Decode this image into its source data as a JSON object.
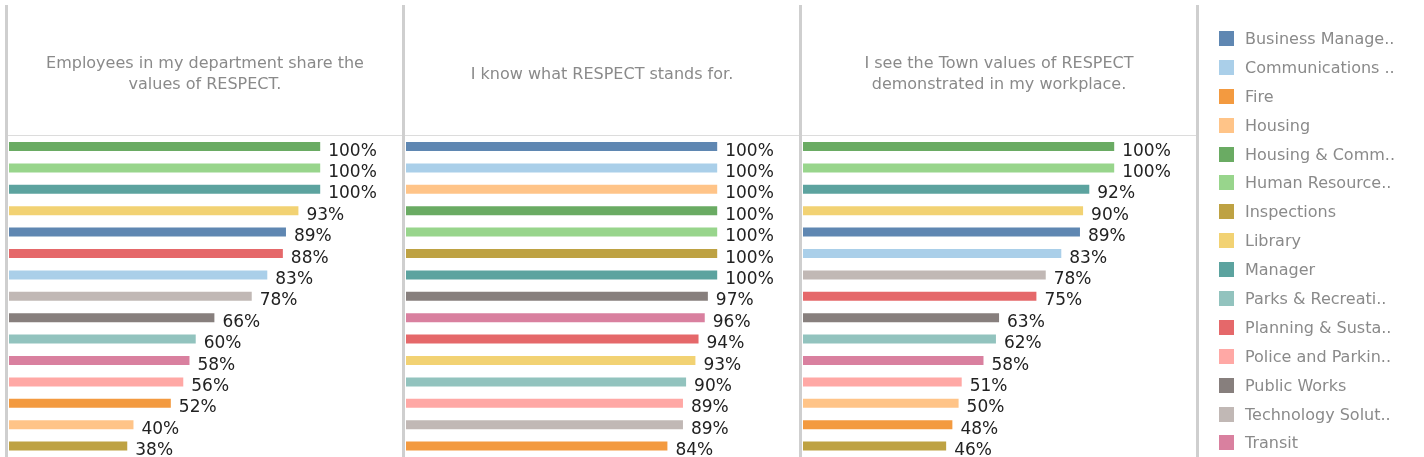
{
  "chart_data": [
    {
      "type": "bar",
      "orientation": "horizontal",
      "stacked": true,
      "legend": "right",
      "title": "Employees in my department share the values of RESPECT.",
      "categories": [
        null,
        null,
        null,
        null,
        null,
        null,
        null,
        null,
        null,
        null,
        null,
        null,
        null,
        null,
        null
      ],
      "series": [
        {
          "name": "Business Manage..",
          "color": "#5f87b2",
          "values": [
            null,
            null,
            null,
            null,
            89,
            null,
            null,
            null,
            null,
            null,
            null,
            null,
            null,
            null,
            null
          ],
          "value_labels": [
            null,
            null,
            null,
            null,
            "89%",
            null,
            null,
            null,
            null,
            null,
            null,
            null,
            null,
            null,
            null
          ]
        },
        {
          "name": "Communications ..",
          "color": "#aacfe9",
          "values": [
            null,
            null,
            null,
            null,
            null,
            null,
            83,
            null,
            null,
            null,
            null,
            null,
            null,
            null,
            null
          ],
          "value_labels": [
            null,
            null,
            null,
            null,
            null,
            null,
            "83%",
            null,
            null,
            null,
            null,
            null,
            null,
            null,
            null
          ]
        },
        {
          "name": "Fire",
          "color": "#f39a40",
          "values": [
            null,
            null,
            null,
            null,
            null,
            null,
            null,
            null,
            null,
            null,
            null,
            null,
            52,
            null,
            null
          ],
          "value_labels": [
            null,
            null,
            null,
            null,
            null,
            null,
            null,
            null,
            null,
            null,
            null,
            null,
            "52%",
            null,
            null
          ]
        },
        {
          "name": "Housing",
          "color": "#ffc488",
          "values": [
            null,
            null,
            null,
            null,
            null,
            null,
            null,
            null,
            null,
            null,
            null,
            null,
            null,
            40,
            null
          ],
          "value_labels": [
            null,
            null,
            null,
            null,
            null,
            null,
            null,
            null,
            null,
            null,
            null,
            null,
            null,
            "40%",
            null
          ]
        },
        {
          "name": "Housing & Comm..",
          "color": "#6aab63",
          "values": [
            100,
            null,
            null,
            null,
            null,
            null,
            null,
            null,
            null,
            null,
            null,
            null,
            null,
            null,
            null
          ],
          "value_labels": [
            "100%",
            null,
            null,
            null,
            null,
            null,
            null,
            null,
            null,
            null,
            null,
            null,
            null,
            null,
            null
          ]
        },
        {
          "name": "Human Resource..",
          "color": "#98d58c",
          "values": [
            null,
            100,
            null,
            null,
            null,
            null,
            null,
            null,
            null,
            null,
            null,
            null,
            null,
            null,
            null
          ],
          "value_labels": [
            null,
            "100%",
            null,
            null,
            null,
            null,
            null,
            null,
            null,
            null,
            null,
            null,
            null,
            null,
            null
          ]
        },
        {
          "name": "Inspections",
          "color": "#bea243",
          "values": [
            null,
            null,
            null,
            null,
            null,
            null,
            null,
            null,
            null,
            null,
            null,
            null,
            null,
            null,
            38
          ],
          "value_labels": [
            null,
            null,
            null,
            null,
            null,
            null,
            null,
            null,
            null,
            null,
            null,
            null,
            null,
            null,
            "38%"
          ]
        },
        {
          "name": "Library",
          "color": "#f2d273",
          "values": [
            null,
            null,
            null,
            93,
            null,
            null,
            null,
            null,
            null,
            null,
            null,
            null,
            null,
            null,
            null
          ],
          "value_labels": [
            null,
            null,
            null,
            "93%",
            null,
            null,
            null,
            null,
            null,
            null,
            null,
            null,
            null,
            null,
            null
          ]
        },
        {
          "name": "Manager",
          "color": "#5ca39f",
          "values": [
            null,
            null,
            100,
            null,
            null,
            null,
            null,
            null,
            null,
            null,
            null,
            null,
            null,
            null,
            null
          ],
          "value_labels": [
            null,
            null,
            "100%",
            null,
            null,
            null,
            null,
            null,
            null,
            null,
            null,
            null,
            null,
            null,
            null
          ]
        },
        {
          "name": "Parks & Recreati..",
          "color": "#92c3be",
          "values": [
            null,
            null,
            null,
            null,
            null,
            null,
            null,
            null,
            null,
            60,
            null,
            null,
            null,
            null,
            null
          ],
          "value_labels": [
            null,
            null,
            null,
            null,
            null,
            null,
            null,
            null,
            null,
            "60%",
            null,
            null,
            null,
            null,
            null
          ]
        },
        {
          "name": "Planning & Susta..",
          "color": "#e5686a",
          "values": [
            null,
            null,
            null,
            null,
            null,
            88,
            null,
            null,
            null,
            null,
            null,
            null,
            null,
            null,
            null
          ],
          "value_labels": [
            null,
            null,
            null,
            null,
            null,
            "88%",
            null,
            null,
            null,
            null,
            null,
            null,
            null,
            null,
            null
          ]
        },
        {
          "name": "Police and Parkin..",
          "color": "#ffa8a5",
          "values": [
            null,
            null,
            null,
            null,
            null,
            null,
            null,
            null,
            null,
            null,
            null,
            56,
            null,
            null,
            null
          ],
          "value_labels": [
            null,
            null,
            null,
            null,
            null,
            null,
            null,
            null,
            null,
            null,
            null,
            "56%",
            null,
            null,
            null
          ]
        },
        {
          "name": "Public Works",
          "color": "#877f7d",
          "values": [
            null,
            null,
            null,
            null,
            null,
            null,
            null,
            null,
            66,
            null,
            null,
            null,
            null,
            null,
            null
          ],
          "value_labels": [
            null,
            null,
            null,
            null,
            null,
            null,
            null,
            null,
            "66%",
            null,
            null,
            null,
            null,
            null,
            null
          ]
        },
        {
          "name": "Technology Solut..",
          "color": "#c1b8b5",
          "values": [
            null,
            null,
            null,
            null,
            null,
            null,
            null,
            78,
            null,
            null,
            null,
            null,
            null,
            null,
            null
          ],
          "value_labels": [
            null,
            null,
            null,
            null,
            null,
            null,
            null,
            "78%",
            null,
            null,
            null,
            null,
            null,
            null,
            null
          ]
        },
        {
          "name": "Transit",
          "color": "#d9809f",
          "values": [
            null,
            null,
            null,
            null,
            null,
            null,
            null,
            null,
            null,
            null,
            58,
            null,
            null,
            null,
            null
          ],
          "value_labels": [
            null,
            null,
            null,
            null,
            null,
            null,
            null,
            null,
            null,
            null,
            "58%",
            null,
            null,
            null,
            null
          ]
        }
      ]
    },
    {
      "type": "bar",
      "orientation": "horizontal",
      "stacked": true,
      "title": "I know what RESPECT stands for.",
      "categories": [
        null,
        null,
        null,
        null,
        null,
        null,
        null,
        null,
        null,
        null,
        null,
        null,
        null,
        null,
        null
      ],
      "series": [
        {
          "color": "#5f87b2",
          "values": [
            100,
            null,
            null,
            null,
            null,
            null,
            null,
            null,
            null,
            null,
            null,
            null,
            null,
            null,
            null
          ],
          "value_labels": [
            "100%",
            null,
            null,
            null,
            null,
            null,
            null,
            null,
            null,
            null,
            null,
            null,
            null,
            null,
            null
          ]
        },
        {
          "color": "#aacfe9",
          "values": [
            null,
            100,
            null,
            null,
            null,
            null,
            null,
            null,
            null,
            null,
            null,
            null,
            null,
            null,
            null
          ],
          "value_labels": [
            null,
            "100%",
            null,
            null,
            null,
            null,
            null,
            null,
            null,
            null,
            null,
            null,
            null,
            null,
            null
          ]
        },
        {
          "color": "#f39a40",
          "values": [
            null,
            null,
            null,
            null,
            null,
            null,
            null,
            null,
            null,
            null,
            null,
            null,
            null,
            null,
            84
          ],
          "value_labels": [
            null,
            null,
            null,
            null,
            null,
            null,
            null,
            null,
            null,
            null,
            null,
            null,
            null,
            null,
            "84%"
          ]
        },
        {
          "color": "#ffc488",
          "values": [
            null,
            null,
            100,
            null,
            null,
            null,
            null,
            null,
            null,
            null,
            null,
            null,
            null,
            null,
            null
          ],
          "value_labels": [
            null,
            null,
            "100%",
            null,
            null,
            null,
            null,
            null,
            null,
            null,
            null,
            null,
            null,
            null,
            null
          ]
        },
        {
          "color": "#6aab63",
          "values": [
            null,
            null,
            null,
            100,
            null,
            null,
            null,
            null,
            null,
            null,
            null,
            null,
            null,
            null,
            null
          ],
          "value_labels": [
            null,
            null,
            null,
            "100%",
            null,
            null,
            null,
            null,
            null,
            null,
            null,
            null,
            null,
            null,
            null
          ]
        },
        {
          "color": "#98d58c",
          "values": [
            null,
            null,
            null,
            null,
            100,
            null,
            null,
            null,
            null,
            null,
            null,
            null,
            null,
            null,
            null
          ],
          "value_labels": [
            null,
            null,
            null,
            null,
            "100%",
            null,
            null,
            null,
            null,
            null,
            null,
            null,
            null,
            null,
            null
          ]
        },
        {
          "color": "#bea243",
          "values": [
            null,
            null,
            null,
            null,
            null,
            100,
            null,
            null,
            null,
            null,
            null,
            null,
            null,
            null,
            null
          ],
          "value_labels": [
            null,
            null,
            null,
            null,
            null,
            "100%",
            null,
            null,
            null,
            null,
            null,
            null,
            null,
            null,
            null
          ]
        },
        {
          "color": "#f2d273",
          "values": [
            null,
            null,
            null,
            null,
            null,
            null,
            null,
            null,
            null,
            null,
            93,
            null,
            null,
            null,
            null
          ],
          "value_labels": [
            null,
            null,
            null,
            null,
            null,
            null,
            null,
            null,
            null,
            null,
            "93%",
            null,
            null,
            null,
            null
          ]
        },
        {
          "color": "#5ca39f",
          "values": [
            null,
            null,
            null,
            null,
            null,
            null,
            100,
            null,
            null,
            null,
            null,
            null,
            null,
            null,
            null
          ],
          "value_labels": [
            null,
            null,
            null,
            null,
            null,
            null,
            "100%",
            null,
            null,
            null,
            null,
            null,
            null,
            null,
            null
          ]
        },
        {
          "color": "#92c3be",
          "values": [
            null,
            null,
            null,
            null,
            null,
            null,
            null,
            null,
            null,
            null,
            null,
            90,
            null,
            null,
            null
          ],
          "value_labels": [
            null,
            null,
            null,
            null,
            null,
            null,
            null,
            null,
            null,
            null,
            null,
            "90%",
            null,
            null,
            null
          ]
        },
        {
          "color": "#e5686a",
          "values": [
            null,
            null,
            null,
            null,
            null,
            null,
            null,
            null,
            null,
            94,
            null,
            null,
            null,
            null,
            null
          ],
          "value_labels": [
            null,
            null,
            null,
            null,
            null,
            null,
            null,
            null,
            null,
            "94%",
            null,
            null,
            null,
            null,
            null
          ]
        },
        {
          "color": "#ffa8a5",
          "values": [
            null,
            null,
            null,
            null,
            null,
            null,
            null,
            null,
            null,
            null,
            null,
            null,
            89,
            null,
            null
          ],
          "value_labels": [
            null,
            null,
            null,
            null,
            null,
            null,
            null,
            null,
            null,
            null,
            null,
            null,
            "89%",
            null,
            null
          ]
        },
        {
          "color": "#877f7d",
          "values": [
            null,
            null,
            null,
            null,
            null,
            null,
            null,
            97,
            null,
            null,
            null,
            null,
            null,
            null,
            null
          ],
          "value_labels": [
            null,
            null,
            null,
            null,
            null,
            null,
            null,
            "97%",
            null,
            null,
            null,
            null,
            null,
            null,
            null
          ]
        },
        {
          "color": "#c1b8b5",
          "values": [
            null,
            null,
            null,
            null,
            null,
            null,
            null,
            null,
            null,
            null,
            null,
            null,
            null,
            89,
            null
          ],
          "value_labels": [
            null,
            null,
            null,
            null,
            null,
            null,
            null,
            null,
            null,
            null,
            null,
            null,
            null,
            "89%",
            null
          ]
        },
        {
          "color": "#d9809f",
          "values": [
            null,
            null,
            null,
            null,
            null,
            null,
            null,
            null,
            96,
            null,
            null,
            null,
            null,
            null,
            null
          ],
          "value_labels": [
            null,
            null,
            null,
            null,
            null,
            null,
            null,
            null,
            "96%",
            null,
            null,
            null,
            null,
            null,
            null
          ]
        }
      ]
    },
    {
      "type": "bar",
      "orientation": "horizontal",
      "stacked": true,
      "title": "I see the Town values of RESPECT demonstrated in my workplace.",
      "categories": [
        null,
        null,
        null,
        null,
        null,
        null,
        null,
        null,
        null,
        null,
        null,
        null,
        null,
        null,
        null
      ],
      "series": [
        {
          "color": "#5f87b2",
          "values": [
            null,
            null,
            null,
            null,
            89,
            null,
            null,
            null,
            null,
            null,
            null,
            null,
            null,
            null,
            null
          ],
          "value_labels": [
            null,
            null,
            null,
            null,
            "89%",
            null,
            null,
            null,
            null,
            null,
            null,
            null,
            null,
            null,
            null
          ]
        },
        {
          "color": "#aacfe9",
          "values": [
            null,
            null,
            null,
            null,
            null,
            83,
            null,
            null,
            null,
            null,
            null,
            null,
            null,
            null,
            null
          ],
          "value_labels": [
            null,
            null,
            null,
            null,
            null,
            "83%",
            null,
            null,
            null,
            null,
            null,
            null,
            null,
            null,
            null
          ]
        },
        {
          "color": "#f39a40",
          "values": [
            null,
            null,
            null,
            null,
            null,
            null,
            null,
            null,
            null,
            null,
            null,
            null,
            null,
            48,
            null
          ],
          "value_labels": [
            null,
            null,
            null,
            null,
            null,
            null,
            null,
            null,
            null,
            null,
            null,
            null,
            null,
            "48%",
            null
          ]
        },
        {
          "color": "#ffc488",
          "values": [
            null,
            null,
            null,
            null,
            null,
            null,
            null,
            null,
            null,
            null,
            null,
            null,
            50,
            null,
            null
          ],
          "value_labels": [
            null,
            null,
            null,
            null,
            null,
            null,
            null,
            null,
            null,
            null,
            null,
            null,
            "50%",
            null,
            null
          ]
        },
        {
          "color": "#6aab63",
          "values": [
            100,
            null,
            null,
            null,
            null,
            null,
            null,
            null,
            null,
            null,
            null,
            null,
            null,
            null,
            null
          ],
          "value_labels": [
            "100%",
            null,
            null,
            null,
            null,
            null,
            null,
            null,
            null,
            null,
            null,
            null,
            null,
            null,
            null
          ]
        },
        {
          "color": "#98d58c",
          "values": [
            null,
            100,
            null,
            null,
            null,
            null,
            null,
            null,
            null,
            null,
            null,
            null,
            null,
            null,
            null
          ],
          "value_labels": [
            null,
            "100%",
            null,
            null,
            null,
            null,
            null,
            null,
            null,
            null,
            null,
            null,
            null,
            null,
            null
          ]
        },
        {
          "color": "#bea243",
          "values": [
            null,
            null,
            null,
            null,
            null,
            null,
            null,
            null,
            null,
            null,
            null,
            null,
            null,
            null,
            46
          ],
          "value_labels": [
            null,
            null,
            null,
            null,
            null,
            null,
            null,
            null,
            null,
            null,
            null,
            null,
            null,
            null,
            "46%"
          ]
        },
        {
          "color": "#f2d273",
          "values": [
            null,
            null,
            null,
            90,
            null,
            null,
            null,
            null,
            null,
            null,
            null,
            null,
            null,
            null,
            null
          ],
          "value_labels": [
            null,
            null,
            null,
            "90%",
            null,
            null,
            null,
            null,
            null,
            null,
            null,
            null,
            null,
            null,
            null
          ]
        },
        {
          "color": "#5ca39f",
          "values": [
            null,
            null,
            92,
            null,
            null,
            null,
            null,
            null,
            null,
            null,
            null,
            null,
            null,
            null,
            null
          ],
          "value_labels": [
            null,
            null,
            "92%",
            null,
            null,
            null,
            null,
            null,
            null,
            null,
            null,
            null,
            null,
            null,
            null
          ]
        },
        {
          "color": "#92c3be",
          "values": [
            null,
            null,
            null,
            null,
            null,
            null,
            null,
            null,
            null,
            62,
            null,
            null,
            null,
            null,
            null
          ],
          "value_labels": [
            null,
            null,
            null,
            null,
            null,
            null,
            null,
            null,
            null,
            "62%",
            null,
            null,
            null,
            null,
            null
          ]
        },
        {
          "color": "#e5686a",
          "values": [
            null,
            null,
            null,
            null,
            null,
            null,
            null,
            75,
            null,
            null,
            null,
            null,
            null,
            null,
            null
          ],
          "value_labels": [
            null,
            null,
            null,
            null,
            null,
            null,
            null,
            "75%",
            null,
            null,
            null,
            null,
            null,
            null,
            null
          ]
        },
        {
          "color": "#ffa8a5",
          "values": [
            null,
            null,
            null,
            null,
            null,
            null,
            null,
            null,
            null,
            null,
            null,
            51,
            null,
            null,
            null
          ],
          "value_labels": [
            null,
            null,
            null,
            null,
            null,
            null,
            null,
            null,
            null,
            null,
            null,
            "51%",
            null,
            null,
            null
          ]
        },
        {
          "color": "#877f7d",
          "values": [
            null,
            null,
            null,
            null,
            null,
            null,
            null,
            null,
            63,
            null,
            null,
            null,
            null,
            null,
            null
          ],
          "value_labels": [
            null,
            null,
            null,
            null,
            null,
            null,
            null,
            null,
            "63%",
            null,
            null,
            null,
            null,
            null,
            null
          ]
        },
        {
          "color": "#c1b8b5",
          "values": [
            null,
            null,
            null,
            null,
            null,
            null,
            78,
            null,
            null,
            null,
            null,
            null,
            null,
            null,
            null
          ],
          "value_labels": [
            null,
            null,
            null,
            null,
            null,
            null,
            "78%",
            null,
            null,
            null,
            null,
            null,
            null,
            null,
            null
          ]
        },
        {
          "color": "#d9809f",
          "values": [
            null,
            null,
            null,
            null,
            null,
            null,
            null,
            null,
            null,
            null,
            58,
            null,
            null,
            null,
            null
          ],
          "value_labels": [
            null,
            null,
            null,
            null,
            null,
            null,
            null,
            null,
            null,
            null,
            "58%",
            null,
            null,
            null,
            null
          ]
        }
      ]
    }
  ]
}
